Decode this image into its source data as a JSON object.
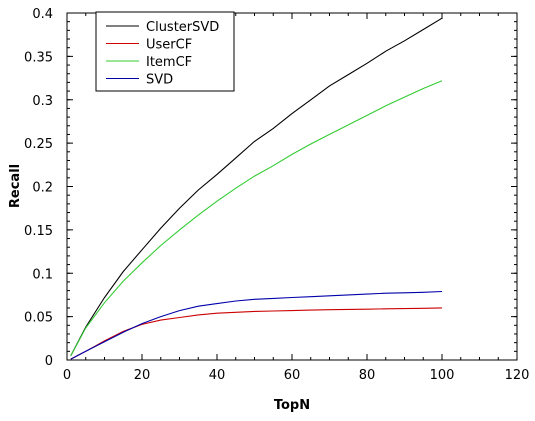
{
  "chart_data": {
    "type": "line",
    "title": "",
    "xlabel": "TopN",
    "ylabel": "Recall",
    "xlim": [
      0,
      120
    ],
    "ylim": [
      0,
      0.4
    ],
    "x_ticks": [
      "0",
      "20",
      "40",
      "60",
      "80",
      "100",
      "120"
    ],
    "y_ticks": [
      "0",
      "0.05",
      "0.1",
      "0.15",
      "0.2",
      "0.25",
      "0.3",
      "0.35",
      "0.4"
    ],
    "grid": false,
    "legend_position": "top-left",
    "x": [
      1,
      5,
      10,
      15,
      20,
      25,
      30,
      35,
      40,
      45,
      50,
      55,
      60,
      65,
      70,
      75,
      80,
      85,
      90,
      95,
      100
    ],
    "series": [
      {
        "name": "ClusterSVD",
        "color": "#000000",
        "values": [
          0.005,
          0.038,
          0.072,
          0.102,
          0.127,
          0.152,
          0.175,
          0.196,
          0.214,
          0.233,
          0.252,
          0.267,
          0.284,
          0.3,
          0.316,
          0.329,
          0.342,
          0.356,
          0.368,
          0.381,
          0.394
        ]
      },
      {
        "name": "UserCF",
        "color": "#cc0000",
        "values": [
          0.001,
          0.01,
          0.022,
          0.033,
          0.041,
          0.046,
          0.049,
          0.052,
          0.054,
          0.055,
          0.056,
          0.0565,
          0.057,
          0.0575,
          0.058,
          0.0583,
          0.0586,
          0.059,
          0.0593,
          0.0596,
          0.06
        ]
      },
      {
        "name": "ItemCF",
        "color": "#33cc33",
        "values": [
          0.005,
          0.037,
          0.066,
          0.091,
          0.112,
          0.132,
          0.15,
          0.167,
          0.183,
          0.198,
          0.212,
          0.224,
          0.237,
          0.249,
          0.26,
          0.271,
          0.282,
          0.293,
          0.303,
          0.313,
          0.322
        ]
      },
      {
        "name": "SVD",
        "color": "#0000aa",
        "values": [
          0.001,
          0.01,
          0.021,
          0.032,
          0.042,
          0.05,
          0.057,
          0.062,
          0.065,
          0.068,
          0.07,
          0.071,
          0.072,
          0.073,
          0.074,
          0.075,
          0.076,
          0.077,
          0.0775,
          0.078,
          0.079
        ]
      }
    ]
  }
}
